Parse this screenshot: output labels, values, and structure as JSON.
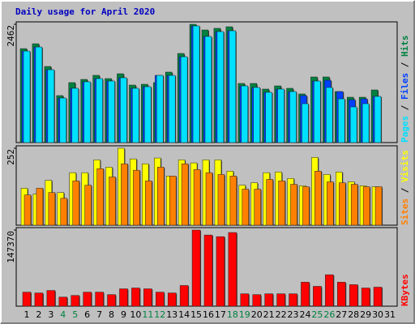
{
  "chart_data": [
    {
      "type": "bar",
      "title": "Daily usage for April 2020",
      "ylim": [
        0,
        2462
      ],
      "yticks": [
        2462
      ],
      "legend_separator": " / ",
      "series": [
        {
          "name": "Hits",
          "color": "#008040",
          "values": [
            1956,
            2057,
            1585,
            978,
            1248,
            1315,
            1400,
            1332,
            1433,
            1197,
            1214,
            1248,
            1467,
            1855,
            2462,
            2344,
            2378,
            2411,
            1231,
            1231,
            1113,
            1180,
            1130,
            1012,
            1366,
            1366,
            1062,
            944,
            944,
            1096,
            0
          ]
        },
        {
          "name": "Files",
          "color": "#0040ff",
          "values": [
            1905,
            1989,
            1517,
            927,
            1130,
            1265,
            1332,
            1281,
            1349,
            1130,
            1163,
            1399,
            1399,
            1787,
            2428,
            2209,
            2310,
            2327,
            1180,
            1147,
            1046,
            1113,
            1062,
            978,
            1281,
            1298,
            1062,
            893,
            910,
            961,
            0
          ]
        },
        {
          "name": "Pages",
          "color": "#00e0ff",
          "values": [
            1905,
            1989,
            1517,
            927,
            1130,
            1265,
            1332,
            1281,
            1349,
            1130,
            1163,
            1399,
            1399,
            1787,
            2428,
            2209,
            2310,
            2327,
            1180,
            1147,
            1046,
            1113,
            1062,
            809,
            1281,
            1147,
            910,
            742,
            809,
            961,
            0
          ]
        }
      ]
    },
    {
      "type": "bar",
      "ylim": [
        0,
        252
      ],
      "yticks": [
        252
      ],
      "legend_separator": " / ",
      "series": [
        {
          "name": "Visits",
          "color": "#ffff00",
          "values": [
            121,
            102,
            147,
            107,
            172,
            172,
            214,
            190,
            252,
            217,
            201,
            220,
            161,
            214,
            204,
            214,
            214,
            177,
            131,
            139,
            172,
            174,
            153,
            129,
            222,
            166,
            174,
            142,
            129,
            126,
            0
          ]
        },
        {
          "name": "Sites",
          "color": "#ff8000",
          "values": [
            99,
            121,
            107,
            88,
            145,
            131,
            185,
            158,
            201,
            180,
            145,
            190,
            161,
            201,
            182,
            172,
            166,
            161,
            118,
            118,
            150,
            145,
            134,
            126,
            177,
            142,
            139,
            134,
            126,
            126,
            0
          ]
        }
      ]
    },
    {
      "type": "bar",
      "ylim": [
        0,
        147370
      ],
      "yticks": [
        147370
      ],
      "categories": [
        "1",
        "2",
        "3",
        "4",
        "5",
        "6",
        "7",
        "8",
        "9",
        "10",
        "11",
        "12",
        "13",
        "14",
        "15",
        "16",
        "17",
        "18",
        "19",
        "20",
        "21",
        "22",
        "23",
        "24",
        "25",
        "26",
        "27",
        "28",
        "29",
        "30",
        "31"
      ],
      "highlight_categories": [
        "4",
        "5",
        "11",
        "12",
        "18",
        "19",
        "25",
        "26"
      ],
      "highlight_color": "#008040",
      "category_color": "#000000",
      "series": [
        {
          "name": "KBytes",
          "color": "#ff0000",
          "values": [
            27234,
            25632,
            30438,
            17622,
            20826,
            27234,
            27234,
            22428,
            33642,
            35244,
            33642,
            27234,
            25632,
            40050,
            147370,
            137772,
            134568,
            142578,
            24030,
            22428,
            24030,
            24030,
            24030,
            46458,
            38448,
            60876,
            46458,
            41652,
            35244,
            36846,
            0
          ]
        }
      ]
    }
  ]
}
